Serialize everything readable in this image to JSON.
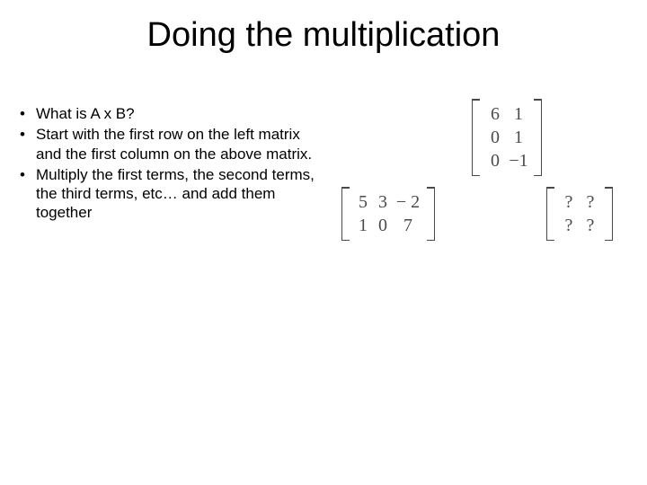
{
  "title": "Doing the multiplication",
  "bullets": [
    "What is A x B?",
    "Start with the first row on the left matrix and the first column on the above matrix.",
    "Multiply the first terms, the second terms, the third terms, etc… and add them together"
  ],
  "matrices": {
    "top": {
      "rows": [
        [
          "6",
          "1"
        ],
        [
          "0",
          "1"
        ],
        [
          "0",
          "−1"
        ]
      ],
      "text_color": "#4a4a4a"
    },
    "left": {
      "rows": [
        [
          "5",
          "3",
          "− 2"
        ],
        [
          "1",
          "0",
          "7"
        ]
      ],
      "text_color": "#4a4a4a"
    },
    "result": {
      "rows": [
        [
          "?",
          "?"
        ],
        [
          "?",
          "?"
        ]
      ],
      "text_color": "#4a4a4a"
    }
  },
  "style": {
    "title_fontsize": 38,
    "body_fontsize": 17,
    "math_fontsize": 20,
    "background_color": "#ffffff",
    "text_color": "#000000",
    "math_color": "#4a4a4a"
  }
}
